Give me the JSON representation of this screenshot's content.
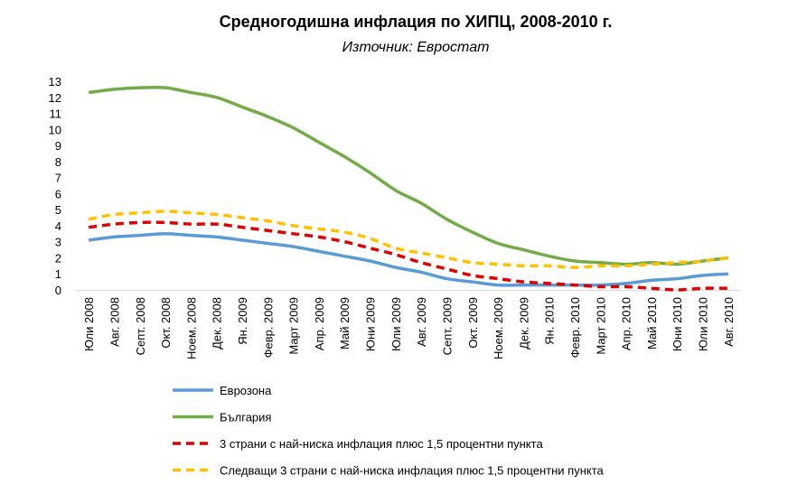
{
  "chart_data": {
    "type": "line",
    "title": "Средногодишна инфлация по ХИПЦ, 2008-2010 г.",
    "subtitle": "Източник: Евростат",
    "xlabel": "",
    "ylabel": "",
    "ylim": [
      0,
      13
    ],
    "yticks": [
      0,
      1,
      2,
      3,
      4,
      5,
      6,
      7,
      8,
      9,
      10,
      11,
      12,
      13
    ],
    "grid": false,
    "legend_position": "bottom",
    "categories": [
      "Юли 2008",
      "Авг. 2008",
      "Септ. 2008",
      "Окт. 2008",
      "Ноем. 2008",
      "Дек. 2008",
      "Ян. 2009",
      "Февр. 2009",
      "Март 2009",
      "Апр. 2009",
      "Май 2009",
      "Юни 2009",
      "Юли 2009",
      "Авг. 2009",
      "Септ. 2009",
      "Окт. 2009",
      "Ноем. 2009",
      "Дек. 2009",
      "Ян. 2010",
      "Февр. 2010",
      "Март 2010",
      "Апр. 2010",
      "Май 2010",
      "Юни 2010",
      "Юли 2010",
      "Авг. 2010"
    ],
    "series": [
      {
        "name": "Еврозона",
        "color": "#5b9bd5",
        "dash": "solid",
        "values": [
          3.1,
          3.3,
          3.4,
          3.5,
          3.4,
          3.3,
          3.1,
          2.9,
          2.7,
          2.4,
          2.1,
          1.8,
          1.4,
          1.1,
          0.7,
          0.5,
          0.3,
          0.3,
          0.3,
          0.3,
          0.3,
          0.4,
          0.6,
          0.7,
          0.9,
          1.0
        ]
      },
      {
        "name": "България",
        "color": "#70ad47",
        "dash": "solid",
        "values": [
          12.3,
          12.5,
          12.6,
          12.6,
          12.3,
          12.0,
          11.4,
          10.8,
          10.1,
          9.2,
          8.3,
          7.3,
          6.2,
          5.4,
          4.4,
          3.6,
          2.9,
          2.5,
          2.1,
          1.8,
          1.7,
          1.6,
          1.7,
          1.6,
          1.8,
          2.0
        ]
      },
      {
        "name": "3 страни с най-ниска инфлация плюс 1,5 процентни пункта",
        "color": "#e00000",
        "dash": "dashed",
        "values": [
          3.9,
          4.1,
          4.2,
          4.2,
          4.1,
          4.1,
          3.9,
          3.7,
          3.5,
          3.3,
          3.0,
          2.6,
          2.2,
          1.7,
          1.3,
          0.9,
          0.7,
          0.5,
          0.4,
          0.3,
          0.2,
          0.2,
          0.1,
          0.0,
          0.1,
          0.1
        ]
      },
      {
        "name": "Следващи 3 страни с най-ниска инфлация плюс 1,5 процентни пункта",
        "color": "#ffc000",
        "dash": "dashed",
        "values": [
          4.4,
          4.7,
          4.8,
          4.9,
          4.8,
          4.7,
          4.5,
          4.3,
          4.0,
          3.8,
          3.6,
          3.2,
          2.6,
          2.3,
          2.0,
          1.7,
          1.6,
          1.5,
          1.5,
          1.4,
          1.5,
          1.5,
          1.6,
          1.7,
          1.8,
          2.0
        ]
      }
    ]
  }
}
